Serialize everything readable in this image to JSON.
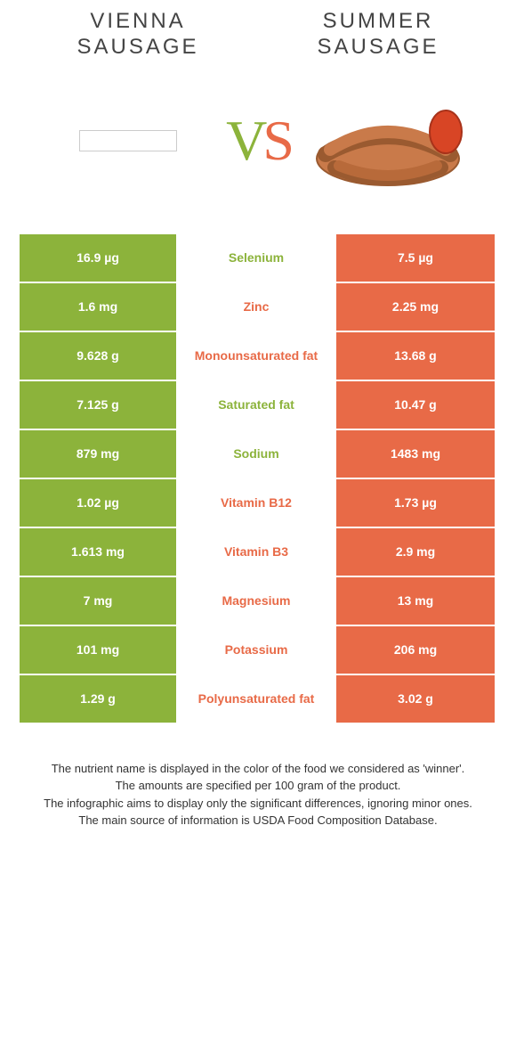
{
  "header": {
    "left_title_line1": "VIENNA",
    "left_title_line2": "SAUSAGE",
    "right_title_line1": "SUMMER",
    "right_title_line2": "SAUSAGE",
    "vs_v": "V",
    "vs_s": "S"
  },
  "colors": {
    "green": "#8cb33b",
    "orange": "#e86a47"
  },
  "rows": [
    {
      "left": "16.9 µg",
      "label": "Selenium",
      "winner": "green",
      "right": "7.5 µg"
    },
    {
      "left": "1.6 mg",
      "label": "Zinc",
      "winner": "orange",
      "right": "2.25 mg"
    },
    {
      "left": "9.628 g",
      "label": "Monounsaturated fat",
      "winner": "orange",
      "right": "13.68 g"
    },
    {
      "left": "7.125 g",
      "label": "Saturated fat",
      "winner": "green",
      "right": "10.47 g"
    },
    {
      "left": "879 mg",
      "label": "Sodium",
      "winner": "green",
      "right": "1483 mg"
    },
    {
      "left": "1.02 µg",
      "label": "Vitamin B12",
      "winner": "orange",
      "right": "1.73 µg"
    },
    {
      "left": "1.613 mg",
      "label": "Vitamin B3",
      "winner": "orange",
      "right": "2.9 mg"
    },
    {
      "left": "7 mg",
      "label": "Magnesium",
      "winner": "orange",
      "right": "13 mg"
    },
    {
      "left": "101 mg",
      "label": "Potassium",
      "winner": "orange",
      "right": "206 mg"
    },
    {
      "left": "1.29 g",
      "label": "Polyunsaturated fat",
      "winner": "orange",
      "right": "3.02 g"
    }
  ],
  "footer": {
    "line1": "The nutrient name is displayed in the color of the food we considered as 'winner'.",
    "line2": "The amounts are specified per 100 gram of the product.",
    "line3": "The infographic aims to display only the significant differences, ignoring minor ones.",
    "line4": "The main source of information is USDA Food Composition Database."
  }
}
